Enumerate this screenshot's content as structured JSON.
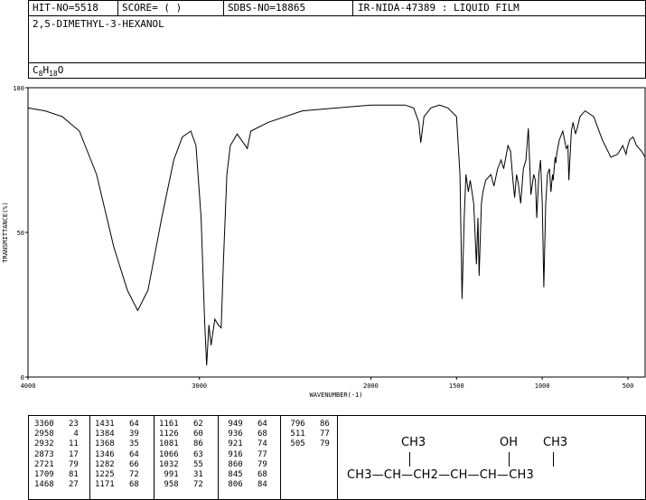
{
  "header": {
    "hit_no": "HIT-NO=5518",
    "score": "SCORE=  (    )",
    "sdbs_no": "SDBS-NO=18865",
    "ir_info": "IR-NIDA-47389 : LIQUID FILM",
    "compound_name": "2,5-DIMETHYL-3-HEXANOL",
    "formula": "C8H18O"
  },
  "chart_data": {
    "type": "line",
    "xlabel": "WAVENUMBER(-1)",
    "ylabel": "TRANSMITTANCE(%)",
    "xlim": [
      4000,
      400
    ],
    "ylim": [
      0,
      100
    ],
    "xticks": [
      4000,
      3000,
      2000,
      1500,
      1000,
      500
    ],
    "yticks": [
      0,
      50,
      100
    ],
    "series": [
      {
        "points": [
          [
            4000,
            93
          ],
          [
            3900,
            92
          ],
          [
            3800,
            90
          ],
          [
            3700,
            85
          ],
          [
            3600,
            70
          ],
          [
            3500,
            45
          ],
          [
            3420,
            30
          ],
          [
            3360,
            23
          ],
          [
            3300,
            30
          ],
          [
            3220,
            55
          ],
          [
            3150,
            75
          ],
          [
            3100,
            83
          ],
          [
            3050,
            85
          ],
          [
            3020,
            80
          ],
          [
            2990,
            55
          ],
          [
            2970,
            20
          ],
          [
            2958,
            4
          ],
          [
            2945,
            18
          ],
          [
            2932,
            11
          ],
          [
            2910,
            20
          ],
          [
            2890,
            18
          ],
          [
            2873,
            17
          ],
          [
            2860,
            40
          ],
          [
            2840,
            70
          ],
          [
            2820,
            80
          ],
          [
            2780,
            84
          ],
          [
            2721,
            79
          ],
          [
            2700,
            85
          ],
          [
            2600,
            88
          ],
          [
            2400,
            92
          ],
          [
            2200,
            93
          ],
          [
            2000,
            94
          ],
          [
            1800,
            94
          ],
          [
            1750,
            93
          ],
          [
            1720,
            88
          ],
          [
            1709,
            81
          ],
          [
            1690,
            90
          ],
          [
            1650,
            93
          ],
          [
            1600,
            94
          ],
          [
            1550,
            93
          ],
          [
            1500,
            90
          ],
          [
            1480,
            70
          ],
          [
            1468,
            27
          ],
          [
            1455,
            55
          ],
          [
            1445,
            70
          ],
          [
            1431,
            64
          ],
          [
            1420,
            68
          ],
          [
            1400,
            60
          ],
          [
            1384,
            39
          ],
          [
            1375,
            55
          ],
          [
            1368,
            35
          ],
          [
            1355,
            60
          ],
          [
            1346,
            64
          ],
          [
            1330,
            68
          ],
          [
            1300,
            70
          ],
          [
            1282,
            66
          ],
          [
            1260,
            72
          ],
          [
            1240,
            75
          ],
          [
            1225,
            72
          ],
          [
            1200,
            80
          ],
          [
            1185,
            78
          ],
          [
            1171,
            68
          ],
          [
            1161,
            62
          ],
          [
            1150,
            70
          ],
          [
            1140,
            67
          ],
          [
            1126,
            60
          ],
          [
            1110,
            72
          ],
          [
            1095,
            75
          ],
          [
            1081,
            86
          ],
          [
            1066,
            63
          ],
          [
            1050,
            70
          ],
          [
            1040,
            68
          ],
          [
            1032,
            55
          ],
          [
            1020,
            70
          ],
          [
            1010,
            75
          ],
          [
            1000,
            60
          ],
          [
            991,
            31
          ],
          [
            980,
            60
          ],
          [
            970,
            70
          ],
          [
            958,
            72
          ],
          [
            949,
            64
          ],
          [
            940,
            70
          ],
          [
            936,
            68
          ],
          [
            925,
            76
          ],
          [
            921,
            74
          ],
          [
            916,
            77
          ],
          [
            900,
            82
          ],
          [
            880,
            85
          ],
          [
            860,
            79
          ],
          [
            850,
            80
          ],
          [
            845,
            68
          ],
          [
            830,
            85
          ],
          [
            820,
            88
          ],
          [
            806,
            84
          ],
          [
            796,
            86
          ],
          [
            780,
            90
          ],
          [
            750,
            92
          ],
          [
            700,
            90
          ],
          [
            650,
            82
          ],
          [
            600,
            76
          ],
          [
            560,
            77
          ],
          [
            530,
            80
          ],
          [
            511,
            77
          ],
          [
            505,
            79
          ],
          [
            490,
            82
          ],
          [
            470,
            83
          ],
          [
            450,
            80
          ],
          [
            420,
            78
          ],
          [
            400,
            76
          ]
        ]
      }
    ]
  },
  "peaks": [
    {
      "wavenumber": "3360",
      "t": "23"
    },
    {
      "wavenumber": "2958",
      "t": "4"
    },
    {
      "wavenumber": "2932",
      "t": "11"
    },
    {
      "wavenumber": "2873",
      "t": "17"
    },
    {
      "wavenumber": "2721",
      "t": "79"
    },
    {
      "wavenumber": "1709",
      "t": "81"
    },
    {
      "wavenumber": "1468",
      "t": "27"
    },
    {
      "wavenumber": "1431",
      "t": "64"
    },
    {
      "wavenumber": "1384",
      "t": "39"
    },
    {
      "wavenumber": "1368",
      "t": "35"
    },
    {
      "wavenumber": "1346",
      "t": "64"
    },
    {
      "wavenumber": "1282",
      "t": "66"
    },
    {
      "wavenumber": "1225",
      "t": "72"
    },
    {
      "wavenumber": "1171",
      "t": "68"
    },
    {
      "wavenumber": "1161",
      "t": "62"
    },
    {
      "wavenumber": "1126",
      "t": "60"
    },
    {
      "wavenumber": "1081",
      "t": "86"
    },
    {
      "wavenumber": "1066",
      "t": "63"
    },
    {
      "wavenumber": "1032",
      "t": "55"
    },
    {
      "wavenumber": "991",
      "t": "31"
    },
    {
      "wavenumber": "958",
      "t": "72"
    },
    {
      "wavenumber": "949",
      "t": "64"
    },
    {
      "wavenumber": "936",
      "t": "68"
    },
    {
      "wavenumber": "921",
      "t": "74"
    },
    {
      "wavenumber": "916",
      "t": "77"
    },
    {
      "wavenumber": "860",
      "t": "79"
    },
    {
      "wavenumber": "845",
      "t": "68"
    },
    {
      "wavenumber": "806",
      "t": "84"
    },
    {
      "wavenumber": "796",
      "t": "86"
    },
    {
      "wavenumber": "511",
      "t": "77"
    },
    {
      "wavenumber": "505",
      "t": "79"
    }
  ],
  "structure": {
    "top_ch3_left": "CH3",
    "top_oh": "OH",
    "top_ch3_right": "CH3",
    "chain": "CH3—CH—CH2—CH—CH—CH3"
  }
}
